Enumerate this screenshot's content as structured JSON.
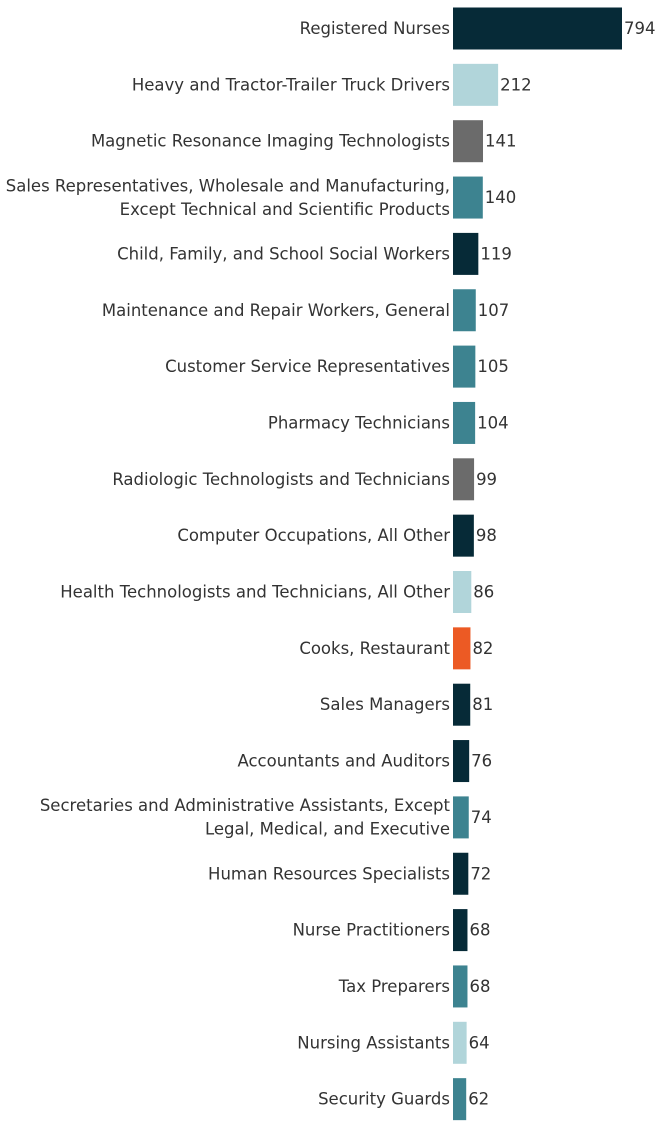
{
  "chart_data": {
    "type": "bar",
    "orientation": "horizontal",
    "title": "",
    "xlabel": "",
    "ylabel": "",
    "grid": false,
    "legend": "none",
    "xlim": [
      0,
      794
    ],
    "categories": [
      [
        "Registered Nurses"
      ],
      [
        "Heavy and Tractor-Trailer Truck Drivers"
      ],
      [
        "Magnetic Resonance Imaging Technologists"
      ],
      [
        "Sales Representatives, Wholesale and Manufacturing,",
        "Except Technical and Scientific Products"
      ],
      [
        "Child, Family, and School Social Workers"
      ],
      [
        "Maintenance and Repair Workers, General"
      ],
      [
        "Customer Service Representatives"
      ],
      [
        "Pharmacy Technicians"
      ],
      [
        "Radiologic Technologists and Technicians"
      ],
      [
        "Computer Occupations, All Other"
      ],
      [
        "Health Technologists and Technicians, All Other"
      ],
      [
        "Cooks, Restaurant"
      ],
      [
        "Sales Managers"
      ],
      [
        "Accountants and Auditors"
      ],
      [
        "Secretaries and Administrative Assistants, Except",
        "Legal, Medical, and Executive"
      ],
      [
        "Human Resources Specialists"
      ],
      [
        "Nurse Practitioners"
      ],
      [
        "Tax Preparers"
      ],
      [
        "Nursing Assistants"
      ],
      [
        "Security Guards"
      ]
    ],
    "values": [
      794,
      212,
      141,
      140,
      119,
      107,
      105,
      104,
      99,
      98,
      86,
      82,
      81,
      76,
      74,
      72,
      68,
      68,
      64,
      62
    ],
    "value_labels": [
      "794",
      "212",
      "141",
      "140",
      "119",
      "107",
      "105",
      "104",
      "99",
      "98",
      "86",
      "82",
      "81",
      "76",
      "74",
      "72",
      "68",
      "68",
      "64",
      "62"
    ],
    "bar_colors": [
      "#062a37",
      "#b1d5da",
      "#6b6b6b",
      "#3d8390",
      "#062a37",
      "#3d8390",
      "#3d8390",
      "#3d8390",
      "#6b6b6b",
      "#062a37",
      "#b1d5da",
      "#ec5a24",
      "#062a37",
      "#062a37",
      "#3d8390",
      "#062a37",
      "#062a37",
      "#3d8390",
      "#b1d5da",
      "#3d8390"
    ]
  }
}
